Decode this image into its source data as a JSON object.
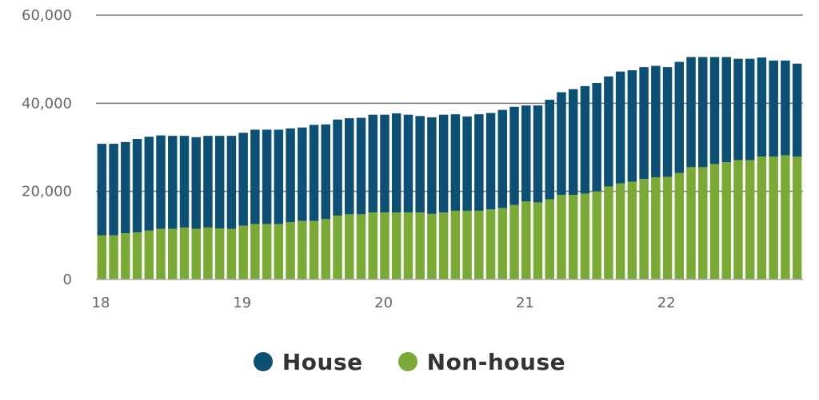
{
  "chart_data": {
    "type": "bar",
    "stacked": true,
    "x_tick_labels": [
      "18",
      "19",
      "20",
      "21",
      "22"
    ],
    "y_ticks": [
      0,
      20000,
      40000,
      60000
    ],
    "y_tick_labels": [
      "0",
      "20,000",
      "40,000",
      "60,000"
    ],
    "ylim": [
      0,
      60000
    ],
    "grid": "horizontal",
    "legend_position": "bottom-center",
    "series": [
      {
        "name": "Non-house",
        "color": "#7aaa35",
        "values": [
          10000,
          10000,
          10500,
          10700,
          11100,
          11500,
          11500,
          11800,
          11500,
          11800,
          11600,
          11500,
          12200,
          12600,
          12600,
          12600,
          13000,
          13300,
          13300,
          13700,
          14500,
          14800,
          14800,
          15200,
          15200,
          15200,
          15200,
          15200,
          14900,
          15200,
          15600,
          15600,
          15600,
          15900,
          16200,
          16900,
          17700,
          17500,
          18200,
          19200,
          19200,
          19500,
          20000,
          21100,
          21800,
          22200,
          22800,
          23200,
          23300,
          24200,
          25500,
          25500,
          26200,
          26600,
          27100,
          27100,
          27900,
          27900,
          28200,
          27900
        ]
      },
      {
        "name": "House",
        "color": "#0d5075",
        "values": [
          20800,
          20800,
          20700,
          21200,
          21300,
          21200,
          21100,
          20800,
          20800,
          20800,
          21000,
          21100,
          21100,
          21400,
          21400,
          21400,
          21300,
          21200,
          21800,
          21500,
          21800,
          21800,
          21900,
          22200,
          22200,
          22500,
          22200,
          21900,
          21900,
          22200,
          21900,
          21400,
          21900,
          21900,
          22300,
          22300,
          21800,
          22000,
          22600,
          23300,
          24000,
          24400,
          24600,
          25000,
          25400,
          25300,
          25400,
          25300,
          24900,
          25200,
          25000,
          25000,
          24300,
          23900,
          23000,
          23000,
          22500,
          21800,
          21500,
          21100
        ]
      }
    ]
  }
}
